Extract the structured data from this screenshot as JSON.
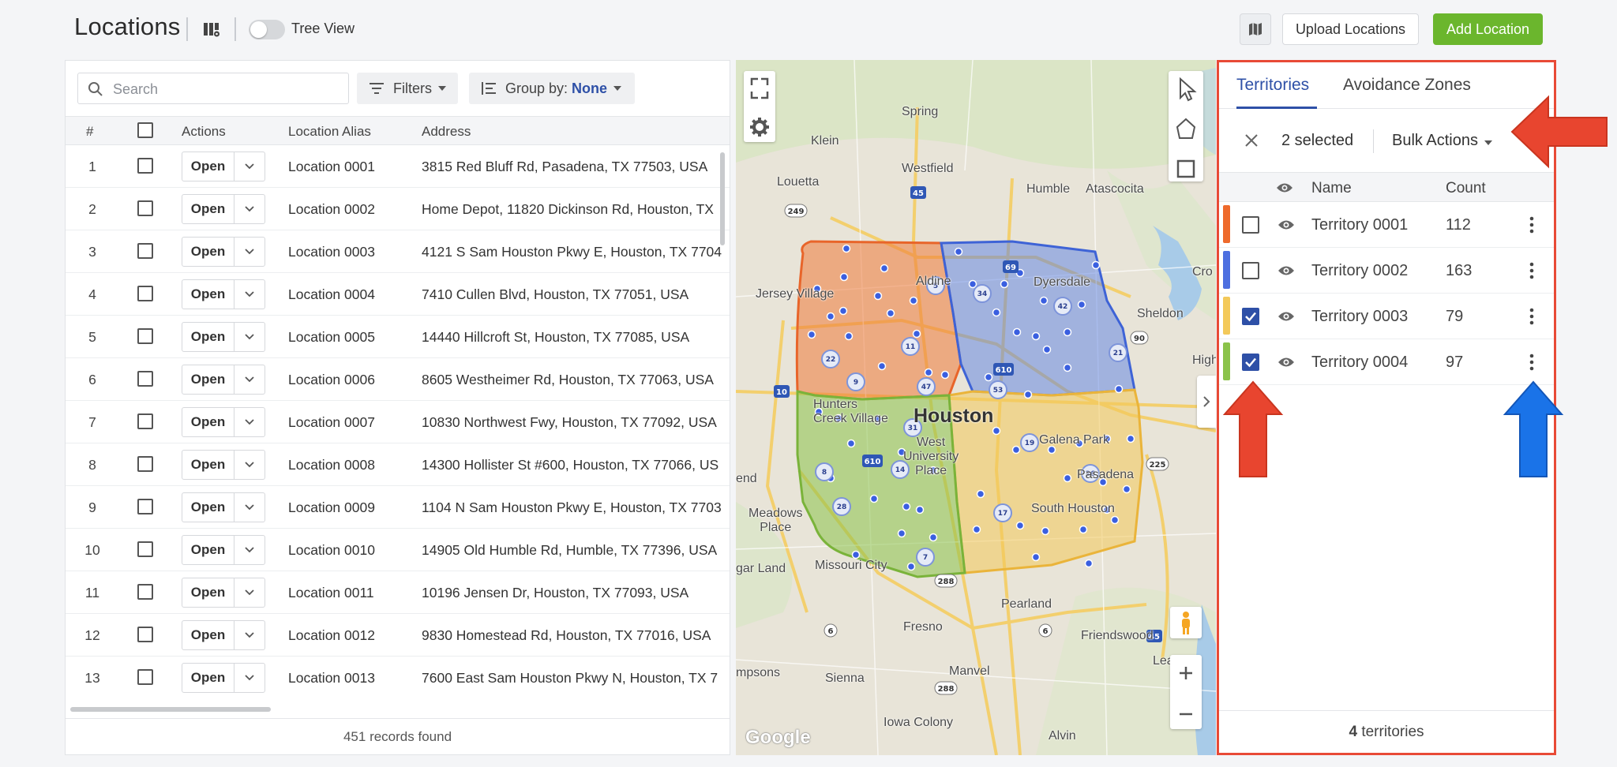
{
  "header": {
    "title": "Locations",
    "tree_view_label": "Tree View",
    "tree_view_on": false,
    "upload_label": "Upload Locations",
    "add_label": "Add Location",
    "accent_color": "#6bb62d"
  },
  "toolbar": {
    "search_placeholder": "Search",
    "filters_label": "Filters",
    "group_by_label": "Group by:",
    "group_by_value": "None"
  },
  "table": {
    "columns": {
      "num": "#",
      "actions": "Actions",
      "alias": "Location Alias",
      "address": "Address"
    },
    "open_label": "Open",
    "rows": [
      {
        "num": "1",
        "alias": "Location 0001",
        "address": "3815 Red Bluff Rd, Pasadena, TX 77503, USA"
      },
      {
        "num": "2",
        "alias": "Location 0002",
        "address": "Home Depot, 11820 Dickinson Rd, Houston, TX"
      },
      {
        "num": "3",
        "alias": "Location 0003",
        "address": "4121 S Sam Houston Pkwy E, Houston, TX 7704"
      },
      {
        "num": "4",
        "alias": "Location 0004",
        "address": "7410 Cullen Blvd, Houston, TX 77051, USA"
      },
      {
        "num": "5",
        "alias": "Location 0005",
        "address": "14440 Hillcroft St, Houston, TX 77085, USA"
      },
      {
        "num": "6",
        "alias": "Location 0006",
        "address": "8605 Westheimer Rd, Houston, TX 77063, USA"
      },
      {
        "num": "7",
        "alias": "Location 0007",
        "address": "10830 Northwest Fwy, Houston, TX 77092, USA"
      },
      {
        "num": "8",
        "alias": "Location 0008",
        "address": "14300 Hollister St #600, Houston, TX 77066, US"
      },
      {
        "num": "9",
        "alias": "Location 0009",
        "address": "1104 N Sam Houston Pkwy E, Houston, TX 7703"
      },
      {
        "num": "10",
        "alias": "Location 0010",
        "address": "14905 Old Humble Rd, Humble, TX 77396, USA"
      },
      {
        "num": "11",
        "alias": "Location 0011",
        "address": "10196 Jensen Dr, Houston, TX 77093, USA"
      },
      {
        "num": "12",
        "alias": "Location 0012",
        "address": "9830 Homestead Rd, Houston, TX 77016, USA"
      },
      {
        "num": "13",
        "alias": "Location 0013",
        "address": "7600 East Sam Houston Pkwy N, Houston, TX 7"
      }
    ],
    "records_count": "451",
    "records_label": " records found"
  },
  "map": {
    "labels": {
      "spring": "Spring",
      "klein": "Klein",
      "westfield": "Westfield",
      "louetta": "Louetta",
      "humble": "Humble",
      "atascocita": "Atascocita",
      "jersey_village": "Jersey Village",
      "aldine": "Aldine",
      "dyersdale": "Dyersdale",
      "sheldon": "Sheldon",
      "crosby": "Cro",
      "highlands": "High",
      "hunters_creek": "Hunters\nCreek Village",
      "houston": "Houston",
      "west_university": "West\nUniversity\nPlace",
      "galena_park": "Galena Park",
      "pasadena": "Pasadena",
      "south_houston": "South Houston",
      "meadows_place": "Meadows\nPlace",
      "sugar_land": "gar Land",
      "missouri_city": "Missouri City",
      "pearland": "Pearland",
      "fresno": "Fresno",
      "friendswood": "Friendswood",
      "sienna": "Sienna",
      "manvel": "Manvel",
      "iowa_colony": "Iowa Colony",
      "alvin": "Alvin",
      "thompsons": "mpsons",
      "townsend": "end",
      "league_city": "Lea",
      "google": "Google"
    },
    "territory_colors": [
      "#ee7a3b",
      "#5a7fe3",
      "#f3c95a",
      "#8bc34a"
    ]
  },
  "territories": {
    "tab_active": "Territories",
    "tab_other": "Avoidance Zones",
    "selected_text": "2 selected",
    "bulk_actions": "Bulk Actions",
    "columns": {
      "name": "Name",
      "count": "Count"
    },
    "rows": [
      {
        "name": "Territory 0001",
        "count": "112",
        "color": "#ee6a2c",
        "checked": false
      },
      {
        "name": "Territory 0002",
        "count": "163",
        "color": "#4d6fe0",
        "checked": false
      },
      {
        "name": "Territory 0003",
        "count": "79",
        "color": "#f3c95a",
        "checked": true
      },
      {
        "name": "Territory 0004",
        "count": "97",
        "color": "#8bc34a",
        "checked": true
      }
    ],
    "footer_count": "4",
    "footer_label": " territories",
    "highlight_color": "#e84a36"
  }
}
